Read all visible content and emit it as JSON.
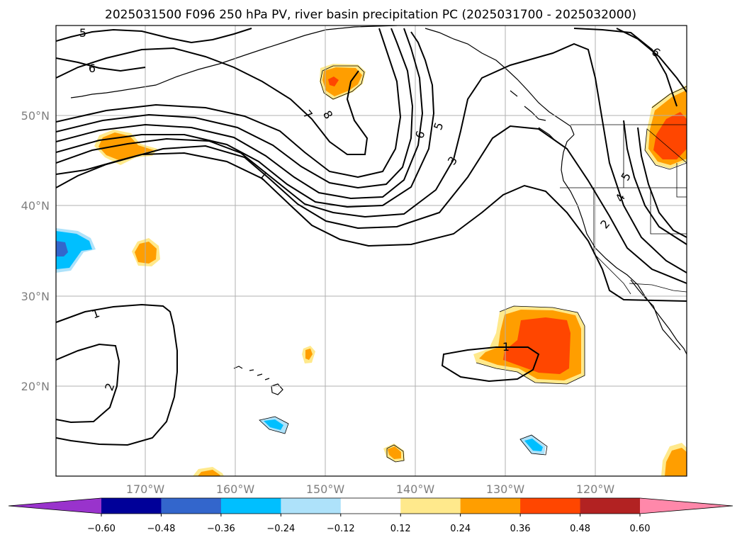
{
  "title": "2025031500 F096 250 hPa PV, river basin precipitation PC (2025031700 - 2025032000)",
  "map": {
    "lon_range": [
      -180,
      -110
    ],
    "lat_range": [
      10,
      60
    ],
    "lon_ticks": [
      {
        "lon": -170,
        "label": "170°W"
      },
      {
        "lon": -160,
        "label": "160°W"
      },
      {
        "lon": -150,
        "label": "150°W"
      },
      {
        "lon": -140,
        "label": "140°W"
      },
      {
        "lon": -130,
        "label": "130°W"
      },
      {
        "lon": -120,
        "label": "120°W"
      }
    ],
    "lat_ticks": [
      {
        "lat": 50,
        "label": "50°N"
      },
      {
        "lat": 40,
        "label": "40°N"
      },
      {
        "lat": 30,
        "label": "30°N"
      },
      {
        "lat": 20,
        "label": "20°N"
      }
    ],
    "gridlines": true,
    "pv_contour_labels": [
      "5",
      "6",
      "7",
      "8",
      "6",
      "5",
      "3",
      "1",
      "6",
      "5",
      "4",
      "2",
      "1",
      "2",
      "1"
    ]
  },
  "colorbar": {
    "colors": [
      "#9933cc",
      "#000099",
      "#3366cc",
      "#00bfff",
      "#aee2fa",
      "#ffffff",
      "#ffe98c",
      "#ff9e00",
      "#ff4600",
      "#b22222",
      "#ff88aa"
    ],
    "ticks": [
      "−0.60",
      "−0.48",
      "−0.36",
      "−0.24",
      "−0.12",
      "0.12",
      "0.24",
      "0.36",
      "0.48",
      "0.60"
    ],
    "extend": "both"
  }
}
